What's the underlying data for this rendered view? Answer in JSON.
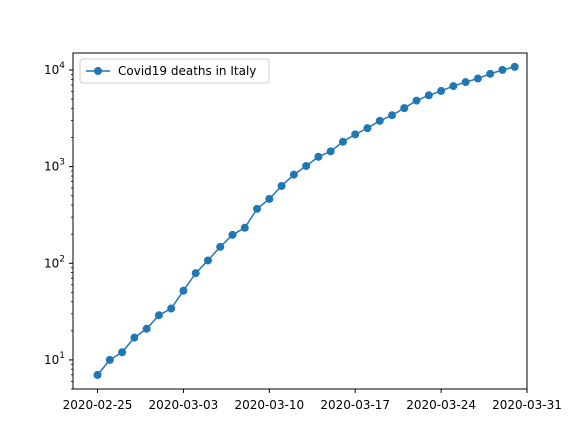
{
  "chart_data": {
    "type": "line",
    "title": "",
    "xlabel": "",
    "ylabel": "",
    "yscale": "log",
    "ylim": [
      5,
      15000
    ],
    "xlim": [
      "2020-02-23",
      "2020-03-31"
    ],
    "x_ticks": [
      "2020-02-25",
      "2020-03-03",
      "2020-03-10",
      "2020-03-17",
      "2020-03-24",
      "2020-03-31"
    ],
    "y_ticks": [
      {
        "value": 10,
        "mantissa": "10",
        "exponent": "1"
      },
      {
        "value": 100,
        "mantissa": "10",
        "exponent": "2"
      },
      {
        "value": 1000,
        "mantissa": "10",
        "exponent": "3"
      },
      {
        "value": 10000,
        "mantissa": "10",
        "exponent": "4"
      }
    ],
    "grid": false,
    "legend_position": "top-left",
    "series": [
      {
        "name": "Covid19 deaths in Italy",
        "color": "#1f77b4",
        "marker": "circle",
        "x": [
          "2020-02-25",
          "2020-02-26",
          "2020-02-27",
          "2020-02-28",
          "2020-02-29",
          "2020-03-01",
          "2020-03-02",
          "2020-03-03",
          "2020-03-04",
          "2020-03-05",
          "2020-03-06",
          "2020-03-07",
          "2020-03-08",
          "2020-03-09",
          "2020-03-10",
          "2020-03-11",
          "2020-03-12",
          "2020-03-13",
          "2020-03-14",
          "2020-03-15",
          "2020-03-16",
          "2020-03-17",
          "2020-03-18",
          "2020-03-19",
          "2020-03-20",
          "2020-03-21",
          "2020-03-22",
          "2020-03-23",
          "2020-03-24",
          "2020-03-25",
          "2020-03-26",
          "2020-03-27",
          "2020-03-28",
          "2020-03-29",
          "2020-03-30"
        ],
        "values": [
          7,
          10,
          12,
          17,
          21,
          29,
          34,
          52,
          79,
          107,
          148,
          197,
          233,
          366,
          463,
          631,
          827,
          1016,
          1266,
          1441,
          1809,
          2158,
          2503,
          2978,
          3405,
          4032,
          4825,
          5476,
          6077,
          6820,
          7503,
          8165,
          9134,
          10023,
          10779
        ]
      }
    ]
  }
}
